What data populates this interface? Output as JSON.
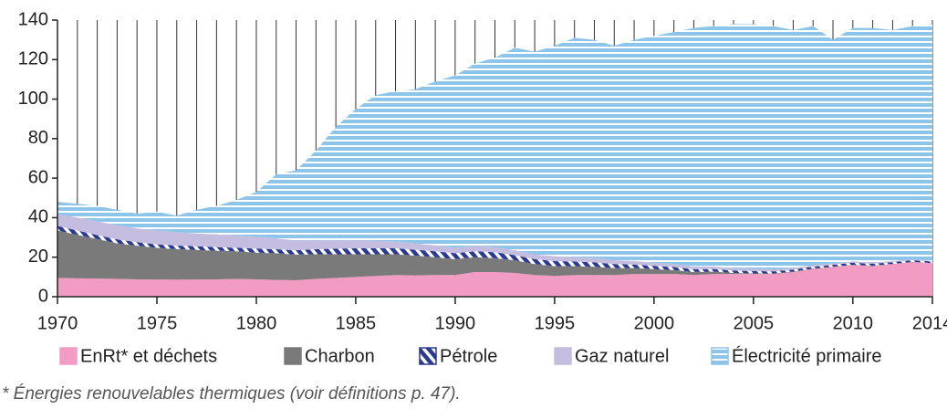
{
  "chart_data": {
    "type": "stacked_area",
    "x": [
      1970,
      1971,
      1972,
      1973,
      1974,
      1975,
      1976,
      1977,
      1978,
      1979,
      1980,
      1981,
      1982,
      1983,
      1984,
      1985,
      1986,
      1987,
      1988,
      1989,
      1990,
      1991,
      1992,
      1993,
      1994,
      1995,
      1996,
      1997,
      1998,
      1999,
      2000,
      2001,
      2002,
      2003,
      2004,
      2005,
      2006,
      2007,
      2008,
      2009,
      2010,
      2011,
      2012,
      2013,
      2014
    ],
    "xlim": [
      1970,
      2014
    ],
    "xticks": [
      1970,
      1975,
      1980,
      1985,
      1990,
      1995,
      2000,
      2005,
      2010,
      2014
    ],
    "ylim": [
      0,
      140
    ],
    "yticks": [
      0,
      20,
      40,
      60,
      80,
      100,
      120,
      140
    ],
    "grid": true,
    "series": [
      {
        "name": "EnRt* et déchets",
        "color": "#f29cc3",
        "hatch": "none",
        "values": [
          9.5,
          9.3,
          9.2,
          9,
          8.8,
          8.7,
          8.6,
          8.7,
          8.8,
          9,
          8.8,
          8.5,
          8.3,
          9,
          9.5,
          10,
          10.5,
          11,
          10.8,
          11,
          11,
          12.5,
          12.5,
          12,
          11,
          10.5,
          11,
          11,
          11,
          11.5,
          11.5,
          11.5,
          11,
          11.5,
          11.5,
          11.5,
          11.5,
          12.5,
          14,
          15,
          16,
          15.5,
          16.5,
          17.5,
          17
        ]
      },
      {
        "name": "Charbon",
        "color": "#7a7a7a",
        "hatch": "none",
        "values": [
          24,
          22,
          20,
          18,
          17,
          16,
          15.5,
          15,
          14.5,
          14,
          13.5,
          13.5,
          13,
          12.5,
          12,
          11.5,
          11,
          10.5,
          10,
          9,
          8,
          7.5,
          7,
          6.5,
          5.5,
          5,
          4.5,
          4.2,
          3.5,
          3,
          2.5,
          2,
          1.5,
          1.2,
          0.5,
          0.3,
          0.2,
          0.2,
          0.2,
          0.2,
          0.2,
          0.2,
          0.1,
          0.1,
          0
        ]
      },
      {
        "name": "Pétrole",
        "color": "#2b3a8f",
        "hatch": "diagonal",
        "values": [
          2.3,
          2.2,
          2,
          2,
          1.8,
          1.8,
          1.8,
          1.8,
          1.8,
          1.8,
          2,
          2,
          2.2,
          2.5,
          2.8,
          3,
          3,
          3,
          3,
          3,
          3,
          3,
          3,
          2.5,
          2.5,
          2.5,
          2.3,
          2.2,
          2,
          1.8,
          1.6,
          1.5,
          1.4,
          1.3,
          1.2,
          1.2,
          1.1,
          1,
          1,
          1,
          1,
          1,
          0.9,
          0.9,
          0.8
        ]
      },
      {
        "name": "Gaz naturel",
        "color": "#c4bde0",
        "hatch": "none",
        "values": [
          6,
          6.5,
          7,
          7.2,
          7,
          7,
          6.8,
          6.5,
          6.5,
          6.3,
          6,
          5.5,
          5,
          4.5,
          4.2,
          4,
          3.8,
          3.5,
          3.2,
          3,
          2.8,
          2.7,
          2.6,
          2.5,
          2.4,
          2.5,
          2.3,
          2.2,
          2,
          1.8,
          1.6,
          1.5,
          1.4,
          1.3,
          1.2,
          1.1,
          1,
          0.9,
          0.8,
          0.8,
          0.7,
          0.6,
          0.5,
          0.4,
          0.3
        ]
      },
      {
        "name": "Électricité primaire",
        "color": "#8cc4ea",
        "hatch": "horizontal",
        "values": [
          6.2,
          7,
          7.8,
          7.8,
          7.4,
          9.5,
          8.3,
          12,
          14.4,
          17.9,
          22.7,
          32.5,
          35.5,
          45.5,
          57.5,
          66.5,
          73.7,
          76,
          78,
          83,
          87.2,
          92.3,
          95.9,
          102.5,
          102.6,
          106.5,
          110.9,
          110.4,
          108.5,
          111.9,
          114.8,
          117.5,
          120.7,
          121.7,
          123.6,
          123.9,
          123.2,
          120.4,
          121,
          113,
          118.1,
          118.7,
          117,
          118.1,
          119.9
        ]
      }
    ],
    "footnote": "* Énergies renouvelables thermiques (voir définitions p. 47)."
  }
}
